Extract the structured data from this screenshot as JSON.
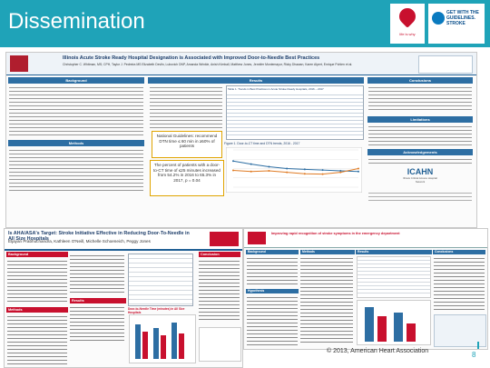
{
  "slide": {
    "title": "Dissemination",
    "footer": "© 2013, American Heart Association",
    "page_number": "8",
    "logo_gwtg": "GET WITH THE GUIDELINES. STROKE",
    "logo_aha_caption": "life is why"
  },
  "poster1": {
    "title": "Illinois Acute Stroke Ready Hospital Designation is Associated with Improved Door-to-Needle Best Practices",
    "authors": "Christopher C. Whitman, MS; CPH, Taylor J. Pedreira MS Elizabeth Devlin, Lubovich DNP, Amanda Wrinkle, Anish Kimball, Matthew Jones, Jennifer Montemayor, Ricky Dhawan, Karen Alpert, Enrique Pohlen et al.",
    "headers": {
      "background": "Background",
      "methods": "Methods",
      "results": "Results",
      "conclusions": "Conclusions",
      "limitations": "Limitations",
      "acknowledgements": "Acknowledgements"
    },
    "callout": "The percent of patients with a door-to-CT time of ≤25 minutes increased from 54.2% in 2016 to 65.3% in 2017, p = 0.04",
    "callout2": "National Guidelines: recommend DTN time ≤ 60 min in ≥50% of patients",
    "table_title": "Table 1. Trends in Best Practices in Acute Stroke Ready Hospitals, 2016 – 2017",
    "figure_title": "Figure 1. Door-to-CT time and DTN trends, 2016 - 2017",
    "icahn": "ICAHN",
    "icahn_sub": "Illinois Critical Access Hospital Network"
  },
  "poster2": {
    "title": "Is AHA/ASA's Target: Stroke Initiative Effective in Reducing Door-To-Needle in All Size Hospitals",
    "authors": "Eljayan Prabhuchandra, Kathleen O'Neill, Michelle Schoeneich, Peggy Jones",
    "headers": {
      "background": "Background",
      "methods": "Methods",
      "results": "Results",
      "conclusion": "Conclusion"
    },
    "figure_title": "Door-to-Needle Time (minutes) in All Size Hospitals"
  },
  "poster3": {
    "title": "Improving rapid recognition of stroke symptoms in the emergency department",
    "headers": {
      "background": "Background",
      "methods": "Methods",
      "results": "Results",
      "conclusions": "Conclusions",
      "hypothesis": "Hypothesis"
    }
  },
  "chart_data": {
    "type": "line",
    "x": [
      "Q1",
      "Q2",
      "Q3",
      "Q4",
      "Q5",
      "Q6",
      "Q7",
      "Q8"
    ],
    "series": [
      {
        "values": [
          70,
          62,
          55,
          50,
          48,
          46,
          44,
          42
        ]
      },
      {
        "values": [
          45,
          42,
          44,
          40,
          36,
          35,
          40,
          50
        ]
      }
    ],
    "ylim": [
      0,
      100
    ],
    "colors": [
      "#2d6ea3",
      "#e07b24"
    ]
  }
}
